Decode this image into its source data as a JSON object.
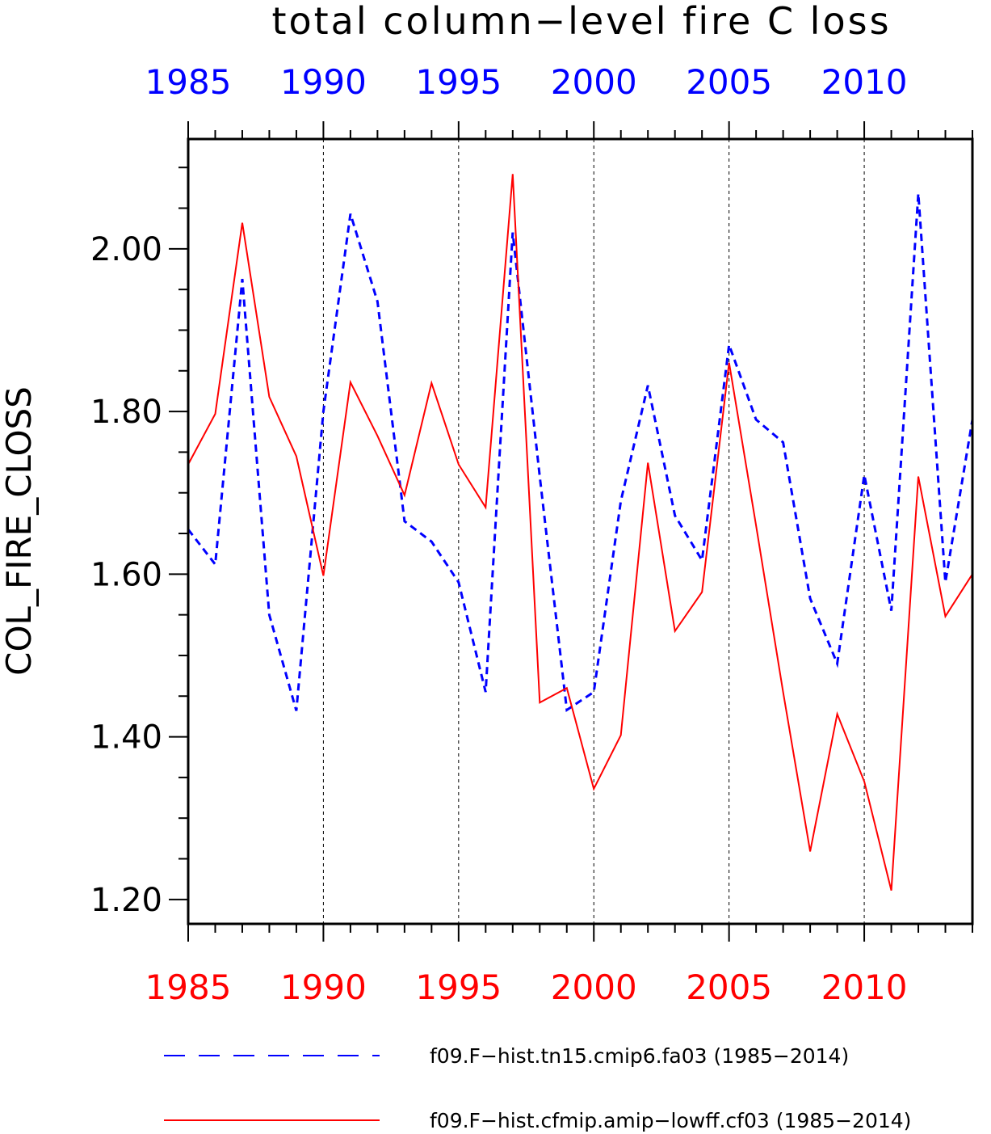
{
  "chart_data": {
    "type": "line",
    "title": "total column−level fire C loss",
    "ylabel": "COL_FIRE_CLOSS",
    "xlabel": "",
    "xlim": [
      1985,
      2014
    ],
    "ylim": [
      1.17,
      2.135
    ],
    "x_major_ticks": [
      1985,
      1990,
      1995,
      2000,
      2005,
      2010
    ],
    "x_tick_labels": [
      "1985",
      "1990",
      "1995",
      "2000",
      "2005",
      "2010"
    ],
    "y_major_ticks": [
      1.2,
      1.4,
      1.6,
      1.8,
      2.0
    ],
    "y_tick_labels": [
      "1.20",
      "1.40",
      "1.60",
      "1.80",
      "2.00"
    ],
    "y_minor_step": 0.05,
    "grid": "vertical dashed at major x ticks",
    "top_axis_color": "#0000ff",
    "bottom_axis_color": "#ff0000",
    "legend_position": "bottom",
    "x": [
      1985,
      1986,
      1987,
      1988,
      1989,
      1990,
      1991,
      1992,
      1993,
      1994,
      1995,
      1996,
      1997,
      1998,
      1999,
      2000,
      2001,
      2002,
      2003,
      2004,
      2005,
      2006,
      2007,
      2008,
      2009,
      2010,
      2011,
      2012,
      2013,
      2014
    ],
    "series": [
      {
        "name": "f09.F−hist.tn15.cmip6.fa03 (1985−2014)",
        "color": "#0000ff",
        "style": "dashed",
        "values": [
          1.655,
          1.612,
          1.963,
          1.55,
          1.432,
          1.8,
          2.043,
          1.935,
          1.665,
          1.64,
          1.59,
          1.455,
          2.02,
          1.72,
          1.433,
          1.455,
          1.69,
          1.832,
          1.672,
          1.617,
          1.882,
          1.79,
          1.762,
          1.57,
          1.49,
          1.722,
          1.555,
          2.068,
          1.59,
          1.79
        ]
      },
      {
        "name": "f09.F−hist.cfmip.amip−lowff.cf03 (1985−2014)",
        "color": "#ff0000",
        "style": "solid",
        "values": [
          1.735,
          1.797,
          2.032,
          1.818,
          1.745,
          1.598,
          1.836,
          1.77,
          1.697,
          1.835,
          1.735,
          1.682,
          2.092,
          1.442,
          1.46,
          1.336,
          1.402,
          1.737,
          1.53,
          1.578,
          1.86,
          1.66,
          1.455,
          1.259,
          1.428,
          1.345,
          1.211,
          1.72,
          1.548,
          1.6
        ]
      }
    ]
  }
}
